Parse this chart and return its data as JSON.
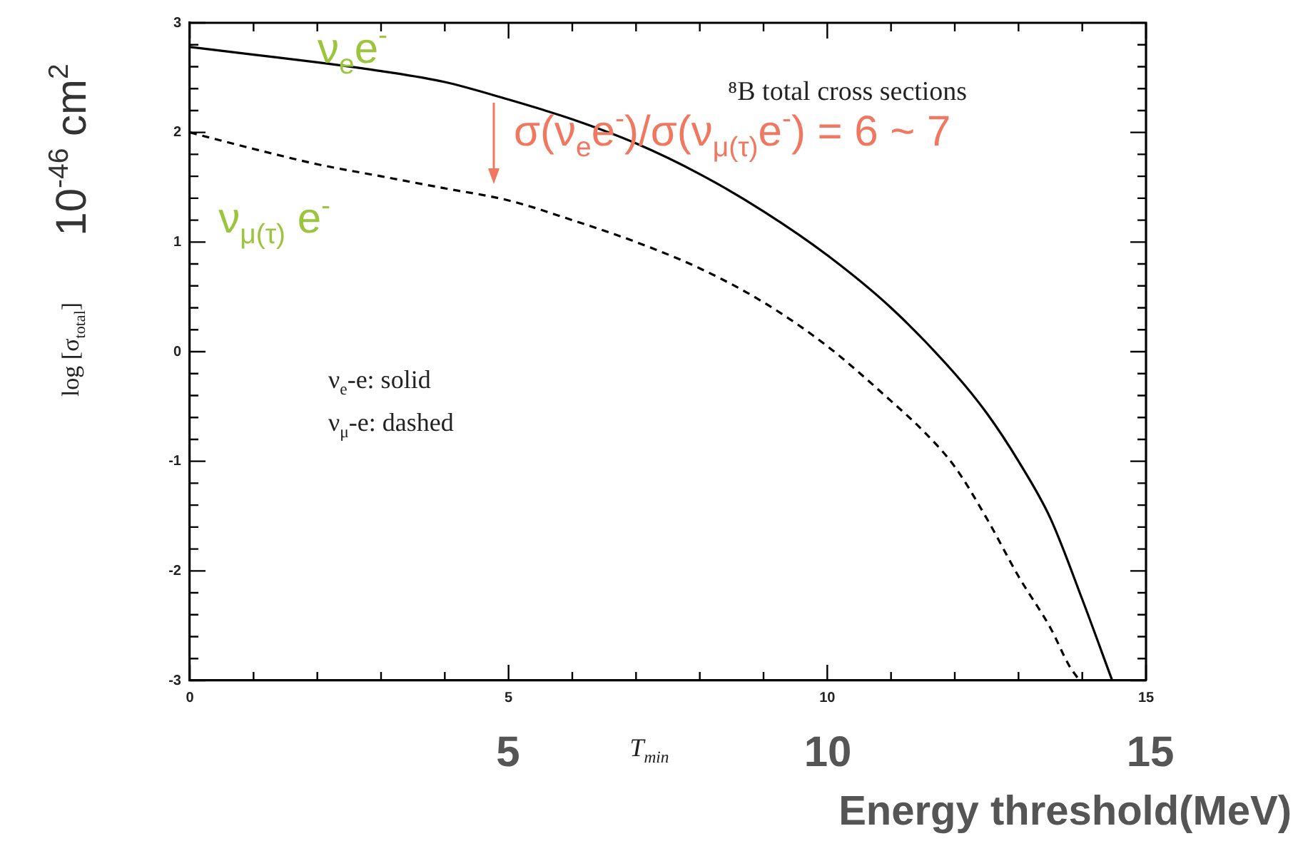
{
  "chart_data": {
    "type": "line",
    "xlabel": "T$_{min}$",
    "ylabel": "log [σ$_{total}$]",
    "x": [
      0,
      1,
      2,
      3,
      4,
      5,
      6,
      7,
      8,
      9,
      10,
      11,
      12,
      12.5,
      13,
      13.5,
      14,
      14.47
    ],
    "series": [
      {
        "name": "ν$_{e}$e$^{-}$",
        "color": "#000000",
        "line_style": "solid",
        "values": [
          2.78,
          2.71,
          2.64,
          2.56,
          2.46,
          2.3,
          2.12,
          1.9,
          1.62,
          1.28,
          0.88,
          0.4,
          -0.2,
          -0.56,
          -1.0,
          -1.52,
          -2.26,
          -3
        ]
      },
      {
        "name": "ν$_{μ(τ)}$ e$^{-}$",
        "color": "#000000",
        "line_style": "dashed",
        "x": [
          0,
          1,
          2,
          3,
          4,
          5,
          6,
          7,
          8,
          9,
          10,
          11,
          11.5,
          12,
          12.5,
          13,
          13.5,
          13.8,
          13.96
        ],
        "values": [
          2,
          1.85,
          1.71,
          1.6,
          1.49,
          1.38,
          1.2,
          1,
          0.76,
          0.45,
          0.05,
          -0.45,
          -0.72,
          -1.05,
          -1.52,
          -2.05,
          -2.52,
          -2.87,
          -3
        ]
      }
    ],
    "marker": "none",
    "legend": "top left",
    "xlim": [
      0,
      15
    ],
    "ylim": [
      -3,
      3
    ],
    "xticks": [
      0,
      {
        "value": 1,
        "label": null
      },
      {
        "value": 2,
        "label": null
      },
      {
        "value": 3,
        "label": null
      },
      {
        "value": 4,
        "label": null
      },
      5,
      {
        "value": 6,
        "label": null
      },
      {
        "value": 7,
        "label": null
      },
      {
        "value": 8,
        "label": null
      },
      {
        "value": 9,
        "label": null
      },
      10,
      {
        "value": 11,
        "label": null
      },
      {
        "value": 12,
        "label": null
      },
      {
        "value": 13,
        "label": null
      },
      {
        "value": 14,
        "label": null
      },
      15
    ],
    "yticks": [
      -3,
      {
        "value": -2.8,
        "label": null
      },
      {
        "value": -2.6,
        "label": null
      },
      {
        "value": -2.4,
        "label": null
      },
      {
        "value": -2.2,
        "label": null
      },
      -2,
      {
        "value": -1.8,
        "label": null
      },
      {
        "value": -1.6,
        "label": null
      },
      {
        "value": -1.4,
        "label": null
      },
      {
        "value": -1.2,
        "label": null
      },
      -1,
      {
        "value": -0.8,
        "label": null
      },
      {
        "value": -0.6,
        "label": null
      },
      {
        "value": -0.4,
        "label": null
      },
      {
        "value": -0.2,
        "label": null
      },
      0,
      {
        "value": 0.2,
        "label": null
      },
      {
        "value": 0.4,
        "label": null
      },
      {
        "value": 0.6,
        "label": null
      },
      {
        "value": 0.8,
        "label": null
      },
      1,
      {
        "value": 1.2,
        "label": null
      },
      {
        "value": 1.4,
        "label": null
      },
      {
        "value": 1.6,
        "label": null
      },
      {
        "value": 1.8,
        "label": null
      },
      2,
      {
        "value": 2.2,
        "label": null
      },
      {
        "value": 2.4,
        "label": null
      },
      {
        "value": 2.6,
        "label": null
      },
      {
        "value": 2.8,
        "label": null
      },
      3
    ],
    "annotations": [
      "⁸B total cross sections",
      "σ(ν$_{e}$e$^{-}$)/σ(ν$_{μ(τ)}$e$^{-}$) = 6 ~ 7",
      "ν$_{e}$-e: solid",
      "ν$_{μ}$-e: dashed",
      "10$^{-46}$ cm$^{2}$",
      "Energy threshold(MeV)",
      "5",
      "10",
      "15"
    ]
  }
}
